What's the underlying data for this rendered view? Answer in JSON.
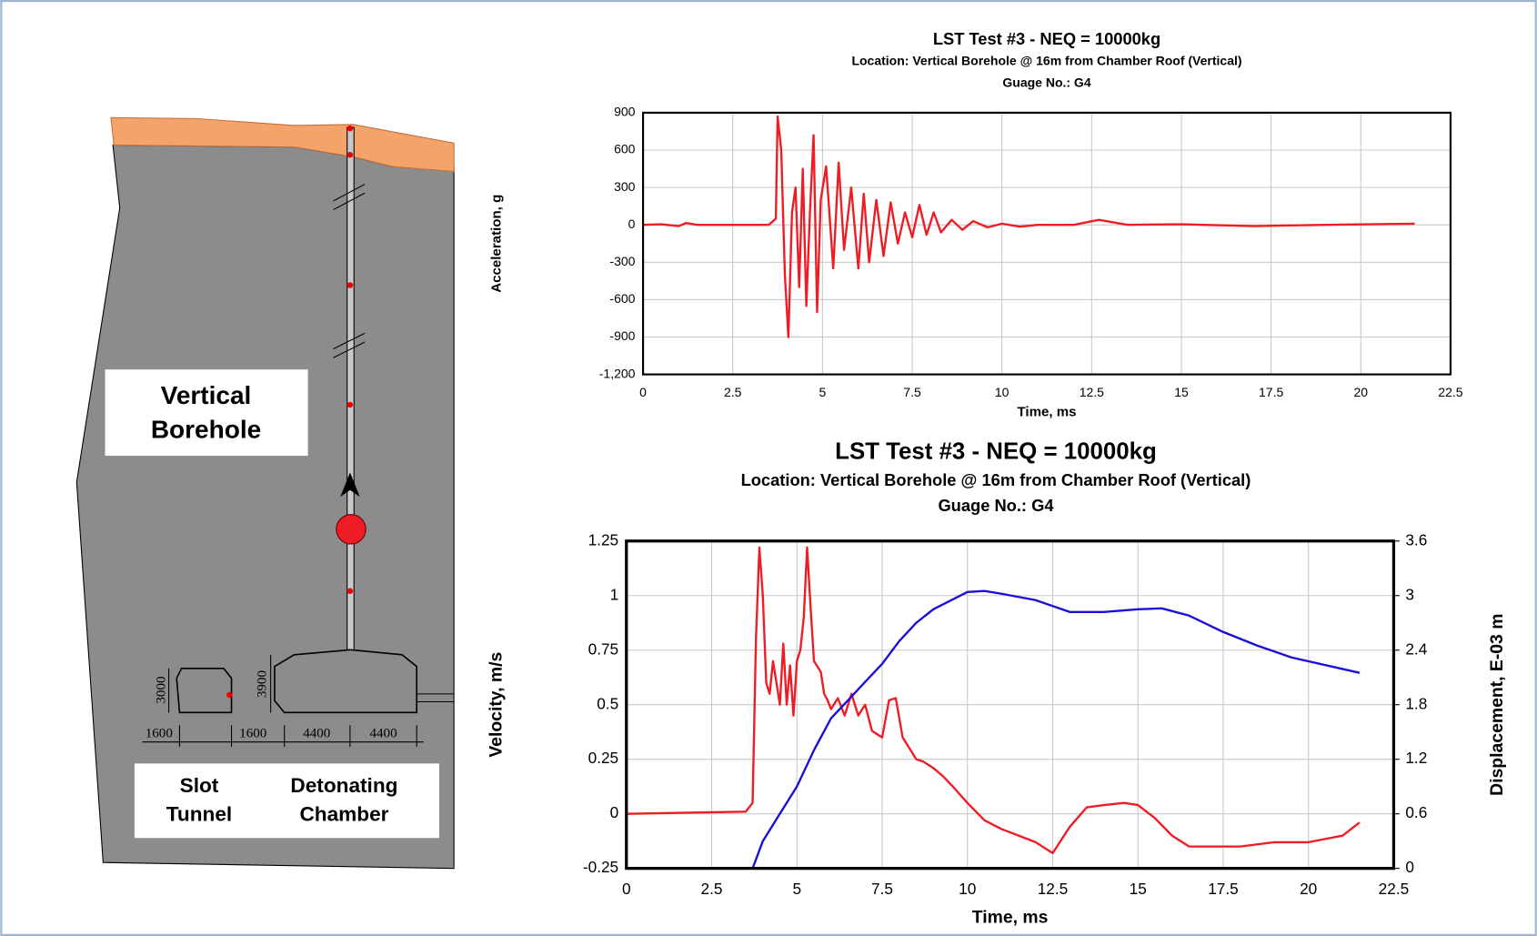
{
  "chart_data": [
    {
      "type": "line",
      "title": "LST Test #3 - NEQ = 10000kg",
      "subtitle": [
        "Location: Vertical Borehole @ 16m from Chamber Roof (Vertical)",
        "Guage No.: G4"
      ],
      "x_label": "Time, ms",
      "y_label": "Acceleration, g",
      "xlim": [
        0,
        22.5
      ],
      "xticks": [
        0,
        2.5,
        5,
        7.5,
        10,
        12.5,
        15,
        17.5,
        20,
        22.5
      ],
      "ylim": [
        -1200,
        900
      ],
      "yticks": [
        900,
        600,
        300,
        0,
        -300,
        -600,
        -900,
        {
          "value": -1200,
          "label": "-1,200"
        }
      ],
      "grid": true,
      "series": [
        {
          "color": "#ee1c25",
          "x": [
            0,
            0.5,
            1,
            1.2,
            1.5,
            3.5,
            3.7,
            3.75,
            3.85,
            3.95,
            4.05,
            4.15,
            4.25,
            4.35,
            4.45,
            4.55,
            4.65,
            4.75,
            4.85,
            4.95,
            5.1,
            5.3,
            5.45,
            5.6,
            5.8,
            6.0,
            6.15,
            6.3,
            6.5,
            6.7,
            6.9,
            7.1,
            7.3,
            7.5,
            7.7,
            7.9,
            8.1,
            8.3,
            8.6,
            8.9,
            9.2,
            9.6,
            10,
            10.5,
            11,
            12,
            12.7,
            13.5,
            15,
            17,
            19,
            21.5
          ],
          "values": [
            0,
            5,
            -10,
            15,
            0,
            0,
            50,
            870,
            600,
            -400,
            -900,
            100,
            300,
            -500,
            450,
            -650,
            100,
            720,
            -700,
            200,
            470,
            -350,
            500,
            -200,
            300,
            -350,
            250,
            -300,
            200,
            -250,
            180,
            -150,
            100,
            -100,
            160,
            -80,
            100,
            -60,
            40,
            -40,
            30,
            -20,
            10,
            -15,
            0,
            0,
            40,
            0,
            5,
            -10,
            0,
            10
          ]
        }
      ]
    },
    {
      "type": "line",
      "title": "LST Test #3 - NEQ = 10000kg",
      "subtitle": [
        "Location: Vertical Borehole @ 16m from Chamber Roof (Vertical)",
        "Guage No.: G4"
      ],
      "x_label": "Time, ms",
      "y_label": "Velocity, m/s",
      "y2_label": "Displacement, E-03 m",
      "xlim": [
        0,
        22.5
      ],
      "xticks": [
        0,
        2.5,
        5,
        7.5,
        10,
        12.5,
        15,
        17.5,
        20,
        22.5
      ],
      "ylim": [
        -0.25,
        1.25
      ],
      "yticks": [
        1.25,
        1,
        0.75,
        0.5,
        0.25,
        0,
        -0.25
      ],
      "y2lim": [
        0,
        3.6
      ],
      "y2ticks": [
        3.6,
        3,
        2.4,
        1.8,
        1.2,
        0.6,
        0
      ],
      "grid": true,
      "series": [
        {
          "color": "#ee1c25",
          "x": [
            0,
            3.5,
            3.7,
            3.8,
            3.9,
            4.0,
            4.1,
            4.2,
            4.3,
            4.4,
            4.5,
            4.6,
            4.7,
            4.8,
            4.9,
            5.0,
            5.1,
            5.2,
            5.3,
            5.4,
            5.5,
            5.7,
            5.8,
            5.9,
            6.0,
            6.2,
            6.4,
            6.6,
            6.8,
            7.0,
            7.2,
            7.5,
            7.7,
            7.9,
            8.1,
            8.3,
            8.5,
            8.7,
            9.0,
            9.3,
            9.6,
            10,
            10.5,
            11,
            11.5,
            12,
            12.5,
            13,
            13.5,
            14,
            14.6,
            15,
            15.5,
            16,
            16.5,
            17,
            18,
            19,
            20,
            21,
            21.5
          ],
          "values": [
            0,
            0.01,
            0.05,
            0.8,
            1.22,
            1.0,
            0.6,
            0.55,
            0.7,
            0.6,
            0.5,
            0.78,
            0.5,
            0.68,
            0.45,
            0.7,
            0.75,
            0.9,
            1.22,
            0.95,
            0.7,
            0.65,
            0.55,
            0.52,
            0.48,
            0.53,
            0.45,
            0.55,
            0.45,
            0.5,
            0.38,
            0.35,
            0.52,
            0.53,
            0.35,
            0.3,
            0.25,
            0.24,
            0.21,
            0.17,
            0.12,
            0.05,
            -0.03,
            -0.07,
            -0.1,
            -0.13,
            -0.18,
            -0.06,
            0.03,
            0.04,
            0.05,
            0.04,
            -0.02,
            -0.1,
            -0.15,
            -0.15,
            -0.15,
            -0.13,
            -0.13,
            -0.1,
            -0.04
          ]
        },
        {
          "color": "#1a0fd6",
          "axis": "y2",
          "x": [
            3.3,
            3.7,
            4,
            4.5,
            5,
            5.5,
            6,
            6.5,
            7,
            7.5,
            8,
            8.5,
            9,
            10,
            10.5,
            11,
            12,
            13,
            14,
            15,
            15.7,
            16.5,
            17.5,
            18.5,
            19.5,
            21.5
          ],
          "values": [
            0,
            0,
            0.3,
            0.6,
            0.9,
            1.3,
            1.65,
            1.85,
            2.05,
            2.25,
            2.5,
            2.7,
            2.85,
            3.04,
            3.05,
            3.02,
            2.95,
            2.82,
            2.82,
            2.85,
            2.86,
            2.78,
            2.6,
            2.45,
            2.32,
            2.15
          ]
        }
      ]
    }
  ],
  "diagram": {
    "borehole_label": [
      "Vertical",
      "Borehole"
    ],
    "slot_label": [
      "Slot",
      "Tunnel"
    ],
    "chamber_label": [
      "Detonating",
      "Chamber"
    ],
    "dimensions": [
      "3000",
      "3900",
      "1600",
      "1600",
      "4400",
      "4400"
    ]
  }
}
